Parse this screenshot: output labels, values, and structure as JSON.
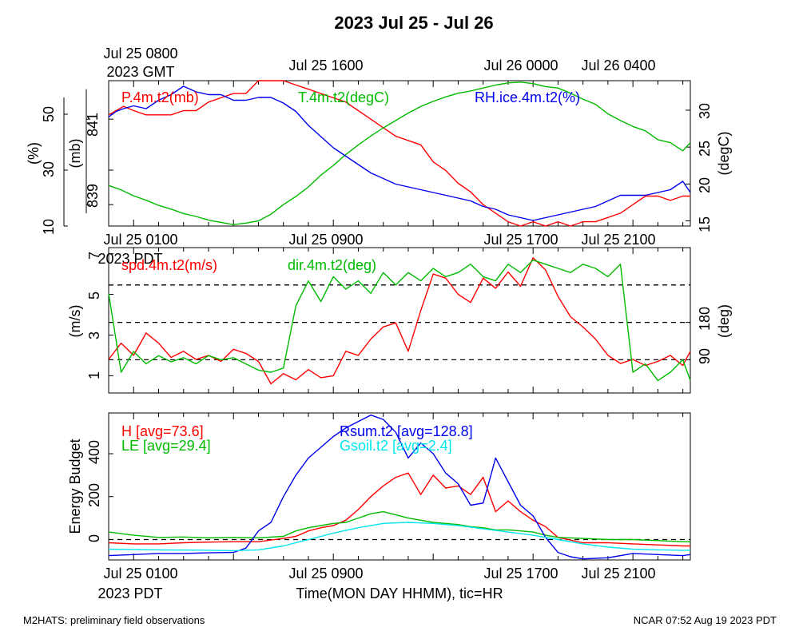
{
  "title": "2023 Jul 25 - Jul 26",
  "footer": {
    "left": "M2HATS: preliminary field observations",
    "right": "NCAR 07:52 Aug 19 2023 PDT"
  },
  "time_axis": {
    "top_labels": [
      "Jul 25 0800",
      "Jul 25 1600",
      "Jul 26 0000",
      "Jul 26 0400"
    ],
    "top_zone": "2023 GMT",
    "bottom_labels": [
      "Jul 25 0100",
      "Jul 25 0900",
      "Jul 25 1700",
      "Jul 25 2100"
    ],
    "bottom_zone": "2023 PDT",
    "xlabel": "Time(MON DAY HHMM), tic=HR"
  },
  "colors": {
    "red": "#ff0000",
    "green": "#00bb00",
    "blue": "#0000ee",
    "cyan": "#00e5ee",
    "black": "#000000"
  },
  "chart_data": [
    {
      "type": "line",
      "panel": "state",
      "x_unit": "hours since Jul 25 0000 PDT",
      "xlim": [
        0,
        23.3
      ],
      "axes": {
        "rh": {
          "label": "(%)",
          "ticks": [
            "10",
            "30",
            "50"
          ],
          "ylim": [
            10,
            62
          ],
          "side": "left"
        },
        "p": {
          "label": "(mb)",
          "ticks": [
            "839",
            "841"
          ],
          "ylim": [
            838.5,
            841.9
          ],
          "side": "left"
        },
        "t": {
          "label": "(degC)",
          "ticks": [
            "15",
            "20",
            "25",
            "30"
          ],
          "ylim": [
            14.3,
            34.0
          ],
          "side": "right"
        }
      },
      "series": [
        {
          "name": "P.4m.t2(mb)",
          "color": "red",
          "axis": "p",
          "x": [
            0,
            0.3,
            0.6,
            1.0,
            1.5,
            2.0,
            2.5,
            3.0,
            3.5,
            4.0,
            4.5,
            5.0,
            5.5,
            6.0,
            6.5,
            7.0,
            7.5,
            8.0,
            8.5,
            9.0,
            9.5,
            10.0,
            10.5,
            11.0,
            11.5,
            12.0,
            12.5,
            13.0,
            13.5,
            14.0,
            14.5,
            15.0,
            15.5,
            16.0,
            16.5,
            17.0,
            17.5,
            18.0,
            18.5,
            19.0,
            19.5,
            20.0,
            20.5,
            21.0,
            21.5,
            22.0,
            22.5,
            23.0,
            23.3
          ],
          "y": [
            841.1,
            841.2,
            841.3,
            841.2,
            841.1,
            841.1,
            841.1,
            841.2,
            841.2,
            841.4,
            841.5,
            841.6,
            841.6,
            841.9,
            841.9,
            841.9,
            841.8,
            841.7,
            841.6,
            841.5,
            841.4,
            841.2,
            841.0,
            840.8,
            840.6,
            840.5,
            840.4,
            840.0,
            839.8,
            839.5,
            839.3,
            839.0,
            838.8,
            838.6,
            838.5,
            838.6,
            838.5,
            838.6,
            838.5,
            838.6,
            838.6,
            838.7,
            838.8,
            839.0,
            839.2,
            839.2,
            839.1,
            839.2,
            839.2
          ]
        },
        {
          "name": "T.4m.t2(degC)",
          "color": "green",
          "axis": "t",
          "x": [
            0,
            0.5,
            1.0,
            1.5,
            2.0,
            2.5,
            3.0,
            3.5,
            4.0,
            4.5,
            5.0,
            5.5,
            6.0,
            6.5,
            7.0,
            7.5,
            8.0,
            8.5,
            9.0,
            9.5,
            10.0,
            10.5,
            11.0,
            11.5,
            12.0,
            12.5,
            13.0,
            13.5,
            14.0,
            14.5,
            15.0,
            15.5,
            16.0,
            16.5,
            17.0,
            17.5,
            18.0,
            18.5,
            19.0,
            19.5,
            20.0,
            20.5,
            21.0,
            21.5,
            22.0,
            22.5,
            23.0,
            23.3
          ],
          "y": [
            19.8,
            19.2,
            18.4,
            17.8,
            17.1,
            16.6,
            16.0,
            15.6,
            15.1,
            14.8,
            14.5,
            14.7,
            15.0,
            15.9,
            17.2,
            18.3,
            19.6,
            21.2,
            22.5,
            24.0,
            25.3,
            26.5,
            27.6,
            28.6,
            29.6,
            30.5,
            31.2,
            31.8,
            32.3,
            32.6,
            33.0,
            33.4,
            33.7,
            33.8,
            33.6,
            33.2,
            33.0,
            32.3,
            31.5,
            30.8,
            29.5,
            28.6,
            27.8,
            27.2,
            26.0,
            25.6,
            24.5,
            25.6
          ]
        },
        {
          "name": "RH.ice.4m.t2(%)",
          "color": "blue",
          "axis": "rh",
          "x": [
            0,
            0.3,
            0.6,
            1.0,
            1.5,
            2.0,
            2.5,
            3.0,
            3.5,
            4.0,
            4.5,
            5.0,
            5.5,
            6.0,
            6.5,
            7.0,
            7.5,
            8.0,
            8.5,
            9.0,
            9.5,
            10.0,
            10.5,
            11.0,
            11.5,
            12.0,
            12.5,
            13.0,
            13.5,
            14.0,
            14.5,
            15.0,
            15.5,
            16.0,
            16.5,
            17.0,
            17.5,
            18.0,
            18.5,
            19.0,
            19.5,
            20.0,
            20.5,
            21.0,
            21.5,
            22.0,
            22.5,
            23.0,
            23.3
          ],
          "y": [
            49,
            51,
            52,
            53,
            52,
            55,
            57,
            60,
            58,
            57,
            57,
            55,
            55,
            56,
            56,
            54,
            51,
            46,
            42,
            38,
            35,
            32,
            29,
            27,
            25,
            24,
            23,
            22,
            21,
            20,
            19,
            17,
            16,
            14,
            13,
            12,
            13,
            14,
            15,
            16,
            17,
            19,
            21,
            21,
            21,
            22,
            23,
            26,
            22
          ]
        }
      ]
    },
    {
      "type": "line",
      "panel": "wind",
      "x_unit": "hours since Jul 25 0000 PDT",
      "xlim": [
        0,
        23.3
      ],
      "axes": {
        "spd": {
          "label": "(m/s)",
          "ticks": [
            "1",
            "3",
            "5",
            "7"
          ],
          "ylim": [
            0.15,
            7.3
          ],
          "side": "left"
        },
        "dir": {
          "label": "(deg)",
          "ticks": [
            "90",
            "180"
          ],
          "ylim": [
            10,
            360
          ],
          "side": "right"
        }
      },
      "reference_lines": {
        "axis": "dir",
        "values": [
          90,
          180,
          270
        ],
        "style": "dashed"
      },
      "series": [
        {
          "name": "spd.4m.t2(m/s)",
          "color": "red",
          "axis": "spd",
          "x": [
            0,
            0.5,
            1.0,
            1.5,
            2.0,
            2.5,
            3.0,
            3.5,
            4.0,
            4.5,
            5.0,
            5.5,
            6.0,
            6.5,
            7.0,
            7.5,
            8.0,
            8.5,
            9.0,
            9.5,
            10.0,
            10.5,
            11.0,
            11.5,
            12.0,
            12.5,
            13.0,
            13.5,
            14.0,
            14.5,
            15.0,
            15.5,
            16.0,
            16.5,
            17.0,
            17.5,
            18.0,
            18.5,
            19.0,
            19.5,
            20.0,
            20.5,
            21.0,
            21.5,
            22.0,
            22.5,
            23.0,
            23.3
          ],
          "y": [
            1.8,
            2.6,
            2.0,
            3.1,
            2.6,
            1.9,
            2.2,
            1.8,
            2.0,
            1.7,
            2.3,
            2.1,
            1.7,
            0.6,
            1.1,
            0.8,
            1.3,
            0.9,
            1.0,
            2.2,
            2.0,
            2.8,
            3.4,
            3.6,
            2.2,
            4.2,
            6.0,
            5.8,
            5.0,
            4.6,
            5.8,
            5.3,
            6.1,
            5.4,
            6.8,
            6.2,
            4.9,
            3.9,
            3.4,
            2.8,
            2.0,
            1.6,
            1.8,
            1.5,
            1.7,
            2.0,
            1.5,
            2.2
          ]
        },
        {
          "name": "dir.4m.t2(deg)",
          "color": "green",
          "axis": "dir",
          "x": [
            0,
            0.5,
            1.0,
            1.5,
            2.0,
            2.5,
            3.0,
            3.5,
            4.0,
            4.5,
            5.0,
            5.5,
            6.0,
            6.5,
            7.0,
            7.5,
            8.0,
            8.5,
            9.0,
            9.5,
            10.0,
            10.5,
            11.0,
            11.5,
            12.0,
            12.5,
            13.0,
            13.5,
            14.0,
            14.5,
            15.0,
            15.5,
            16.0,
            16.5,
            17.0,
            17.5,
            18.0,
            18.5,
            19.0,
            19.5,
            20.0,
            20.5,
            21.0,
            21.5,
            22.0,
            22.5,
            23.0,
            23.3
          ],
          "y": [
            250,
            60,
            110,
            80,
            100,
            85,
            95,
            80,
            100,
            90,
            95,
            80,
            65,
            60,
            70,
            220,
            280,
            230,
            290,
            260,
            280,
            250,
            300,
            270,
            300,
            280,
            310,
            290,
            300,
            320,
            290,
            280,
            320,
            300,
            330,
            320,
            310,
            300,
            320,
            310,
            290,
            320,
            60,
            80,
            40,
            60,
            90,
            40
          ]
        }
      ]
    },
    {
      "type": "line",
      "panel": "energy",
      "x_unit": "hours since Jul 25 0000 PDT",
      "xlim": [
        0,
        23.3
      ],
      "ylabel": "Energy Budget",
      "yticks": [
        "0",
        "200",
        "400"
      ],
      "ylim": [
        -95,
        590
      ],
      "reference_lines": {
        "values": [
          0
        ],
        "style": "dashed"
      },
      "series": [
        {
          "name": "H",
          "avg": "73.6",
          "color": "red",
          "x": [
            0,
            1,
            2,
            3,
            4,
            5,
            6,
            7,
            7.5,
            8,
            8.5,
            9,
            9.5,
            10,
            10.5,
            11,
            11.5,
            12,
            12.5,
            13,
            13.5,
            14,
            14.5,
            15,
            15.5,
            16,
            16.5,
            17,
            17.5,
            18,
            19,
            20,
            21,
            22,
            23,
            23.3
          ],
          "y": [
            -15,
            -20,
            -20,
            -15,
            -12,
            -10,
            -10,
            5,
            15,
            40,
            55,
            65,
            90,
            140,
            200,
            250,
            290,
            310,
            210,
            300,
            240,
            250,
            210,
            290,
            130,
            180,
            130,
            90,
            60,
            10,
            -15,
            -15,
            -20,
            -25,
            -30,
            -30
          ]
        },
        {
          "name": "LE",
          "avg": "29.4",
          "color": "green",
          "x": [
            0,
            1,
            2,
            3,
            4,
            5,
            6,
            7,
            7.5,
            8,
            8.5,
            9,
            9.5,
            10,
            10.5,
            11,
            11.5,
            12,
            12.5,
            13,
            13.5,
            14,
            14.5,
            15,
            15.5,
            16,
            16.5,
            17,
            17.5,
            18,
            19,
            20,
            21,
            22,
            23,
            23.3
          ],
          "y": [
            35,
            20,
            10,
            12,
            8,
            10,
            8,
            15,
            40,
            55,
            65,
            75,
            80,
            100,
            120,
            130,
            115,
            100,
            90,
            80,
            75,
            70,
            60,
            55,
            45,
            45,
            40,
            35,
            20,
            10,
            5,
            0,
            0,
            -5,
            -10,
            -10
          ]
        },
        {
          "name": "Rsum.t2",
          "avg": "128.8",
          "color": "blue",
          "x": [
            0,
            1,
            2,
            3,
            4,
            5,
            5.5,
            6,
            6.5,
            7,
            7.5,
            8,
            8.5,
            9,
            9.5,
            10,
            10.5,
            11,
            11.5,
            12,
            12.5,
            13,
            13.5,
            14,
            14.5,
            15,
            15.5,
            16,
            16.5,
            17,
            17.5,
            18,
            18.5,
            19,
            20,
            21,
            22,
            23,
            23.3
          ],
          "y": [
            -75,
            -70,
            -65,
            -65,
            -62,
            -60,
            -40,
            40,
            80,
            200,
            300,
            380,
            430,
            480,
            520,
            550,
            580,
            560,
            500,
            380,
            450,
            400,
            310,
            260,
            160,
            170,
            380,
            270,
            160,
            110,
            10,
            -60,
            -80,
            -90,
            -85,
            -65,
            -70,
            -75,
            -70
          ]
        },
        {
          "name": "Gsoil.t2",
          "avg": "2.4",
          "color": "cyan",
          "x": [
            0,
            2,
            4,
            5,
            6,
            7,
            8,
            9,
            10,
            11,
            12,
            13,
            14,
            15,
            16,
            17,
            18,
            19,
            20,
            21,
            22,
            23,
            23.3
          ],
          "y": [
            -45,
            -48,
            -50,
            -52,
            -48,
            -30,
            0,
            30,
            55,
            75,
            80,
            75,
            65,
            50,
            35,
            20,
            0,
            -20,
            -35,
            -45,
            -48,
            -50,
            -50
          ]
        }
      ]
    }
  ]
}
